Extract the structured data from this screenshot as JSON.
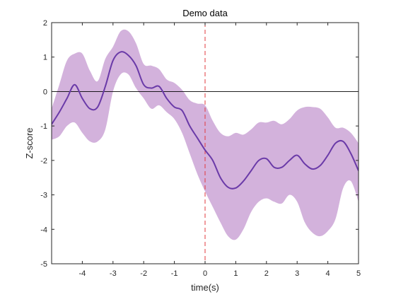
{
  "chart_data": {
    "type": "line",
    "title": "Demo data",
    "xlabel": "time(s)",
    "ylabel": "Z-score",
    "xlim": [
      -5,
      5
    ],
    "ylim": [
      -5,
      2
    ],
    "grid": false,
    "x_ticks": [
      -4,
      -3,
      -2,
      -1,
      0,
      1,
      2,
      3,
      4,
      5
    ],
    "y_ticks": [
      -5,
      -4,
      -3,
      -2,
      -1,
      0,
      1,
      2
    ],
    "x_tick_labels": [
      "-4",
      "-3",
      "-2",
      "-1",
      "0",
      "1",
      "2",
      "3",
      "4",
      "5"
    ],
    "y_tick_labels": [
      "-5",
      "-4",
      "-3",
      "-2",
      "-1",
      "0",
      "1",
      "2"
    ],
    "series": [
      {
        "color": "#6a3aa8",
        "band_color": "#d3b2dc",
        "x": [
          -5.0,
          -4.75,
          -4.5,
          -4.25,
          -4.0,
          -3.75,
          -3.5,
          -3.25,
          -3.0,
          -2.75,
          -2.5,
          -2.25,
          -2.0,
          -1.75,
          -1.5,
          -1.25,
          -1.0,
          -0.75,
          -0.5,
          -0.25,
          0.0,
          0.25,
          0.5,
          0.75,
          1.0,
          1.25,
          1.5,
          1.75,
          2.0,
          2.25,
          2.5,
          2.75,
          3.0,
          3.25,
          3.5,
          3.75,
          4.0,
          4.25,
          4.5,
          4.75,
          5.0
        ],
        "y": [
          -0.95,
          -0.6,
          -0.2,
          0.2,
          -0.2,
          -0.5,
          -0.45,
          0.15,
          0.9,
          1.15,
          1.05,
          0.75,
          0.2,
          0.1,
          0.15,
          -0.2,
          -0.45,
          -0.55,
          -1.0,
          -1.35,
          -1.7,
          -2.0,
          -2.5,
          -2.78,
          -2.8,
          -2.6,
          -2.3,
          -2.0,
          -1.95,
          -2.2,
          -2.2,
          -2.0,
          -1.85,
          -2.1,
          -2.25,
          -2.15,
          -1.85,
          -1.5,
          -1.45,
          -1.8,
          -2.3
        ],
        "lower": [
          -1.4,
          -1.3,
          -1.0,
          -0.9,
          -1.2,
          -1.45,
          -1.45,
          -1.1,
          0.0,
          0.5,
          0.5,
          0.1,
          -0.2,
          -0.5,
          -0.4,
          -0.6,
          -0.8,
          -1.2,
          -1.8,
          -2.4,
          -2.9,
          -3.35,
          -3.8,
          -4.2,
          -4.3,
          -4.0,
          -3.5,
          -3.2,
          -3.1,
          -3.2,
          -3.25,
          -3.0,
          -3.2,
          -3.8,
          -4.1,
          -4.2,
          -4.05,
          -3.7,
          -2.8,
          -2.6,
          -3.2
        ],
        "upper": [
          -0.5,
          0.2,
          0.9,
          1.1,
          1.1,
          0.6,
          0.3,
          0.95,
          1.3,
          1.75,
          1.75,
          1.4,
          0.8,
          0.75,
          0.65,
          0.35,
          0.25,
          0.05,
          -0.25,
          -0.35,
          -0.4,
          -0.85,
          -1.2,
          -1.3,
          -1.2,
          -1.25,
          -1.1,
          -0.9,
          -0.9,
          -0.85,
          -0.95,
          -0.8,
          -0.55,
          -0.45,
          -0.45,
          -0.5,
          -0.75,
          -1.05,
          -1.05,
          -1.2,
          -1.5
        ]
      }
    ],
    "reference_lines": {
      "horizontal_y": 0,
      "horizontal_color": "#000000",
      "vertical_x": 0,
      "vertical_color": "#e0383e",
      "vertical_style": "dashed"
    }
  }
}
